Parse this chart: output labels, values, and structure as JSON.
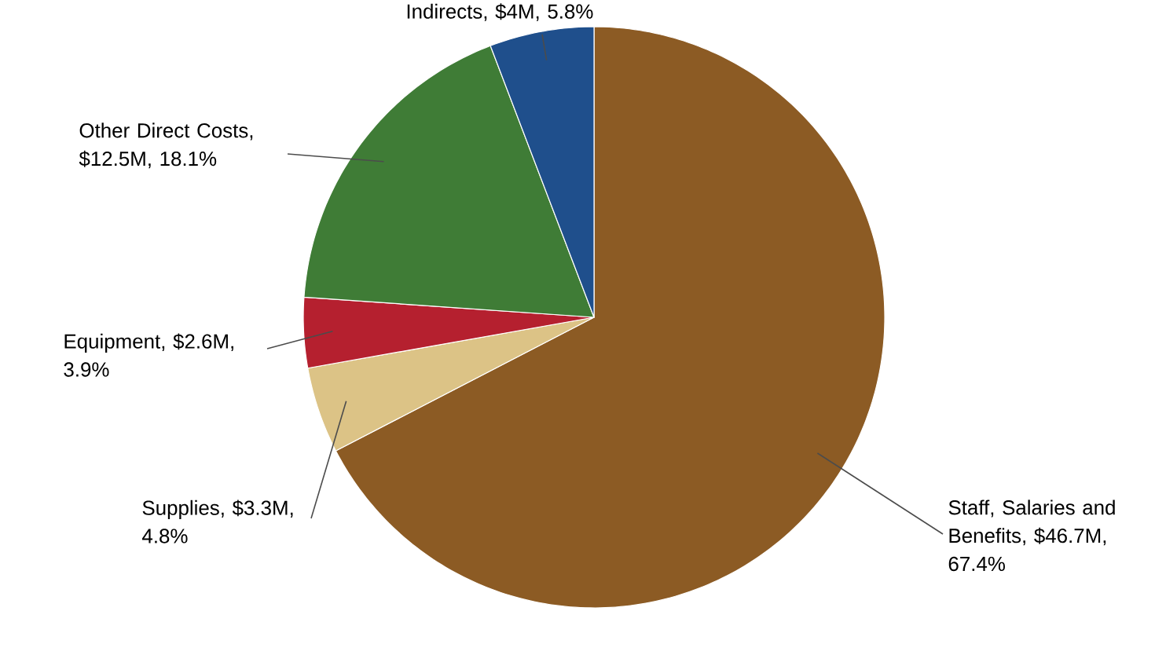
{
  "chart_data": {
    "type": "pie",
    "categories": [
      "Staff, Salaries and Benefits, $46.7M, 67.4%",
      "Supplies, $3.3M, 4.8%",
      "Equipment, $2.6M, 3.9%",
      "Other Direct Costs, $12.5M, 18.1%",
      "Indirects, $4M, 5.8%"
    ],
    "values": [
      67.4,
      4.8,
      3.9,
      18.1,
      5.8
    ],
    "colors": [
      "#8c5b24",
      "#dcc386",
      "#b5202f",
      "#3f7c36",
      "#1f4f8c"
    ]
  }
}
